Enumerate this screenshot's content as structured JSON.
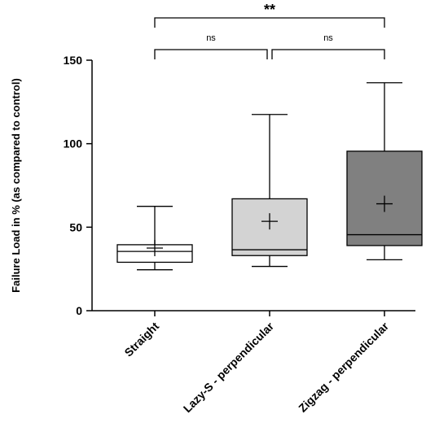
{
  "chart_data": {
    "type": "box",
    "ylabel": "Failure Load in % (as compared to control)",
    "xlabel": "",
    "title": "",
    "ylim": [
      0,
      150
    ],
    "yticks": [
      0,
      50,
      100,
      150
    ],
    "ytick_labels": [
      "0",
      "50",
      "100",
      "150"
    ],
    "grid": false,
    "categories": [
      "Straight",
      "Lazy-S - perpendicular",
      "Zigzag - perpendicular"
    ],
    "boxes": [
      {
        "category": "Straight",
        "min": 24.5,
        "q1": 29,
        "median": 35.5,
        "q3": 39.5,
        "max": 62.5,
        "mean": 37.5,
        "fill": "#ffffff"
      },
      {
        "category": "Lazy-S - perpendicular",
        "min": 26.5,
        "q1": 33,
        "median": 36.5,
        "q3": 67,
        "max": 117.5,
        "mean": 53.5,
        "fill": "#d3d3d3"
      },
      {
        "category": "Zigzag - perpendicular",
        "min": 30.5,
        "q1": 39,
        "median": 45.5,
        "q3": 95.5,
        "max": 136.5,
        "mean": 64,
        "fill": "#808080"
      }
    ],
    "significance": [
      {
        "from": 0,
        "to": 1,
        "label": "ns"
      },
      {
        "from": 1,
        "to": 2,
        "label": "ns"
      },
      {
        "from": 0,
        "to": 2,
        "label": "**"
      }
    ]
  }
}
